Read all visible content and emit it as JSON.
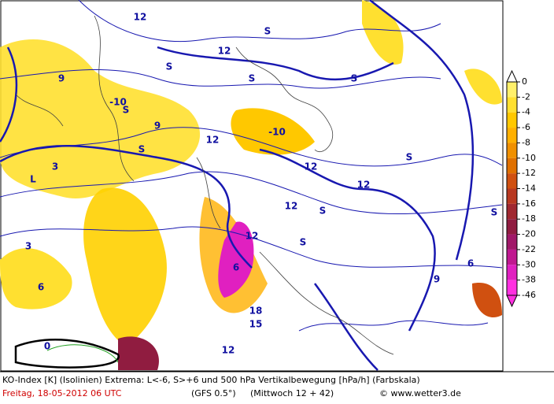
{
  "scale": {
    "ticks": [
      0,
      -2,
      -4,
      -6,
      -8,
      -10,
      -12,
      -14,
      -16,
      -18,
      -20,
      -22,
      -30,
      -38,
      -46
    ],
    "colors": [
      "#fff06a",
      "#ffe030",
      "#ffc800",
      "#ffb000",
      "#f09000",
      "#e07000",
      "#d05010",
      "#b83820",
      "#a02830",
      "#901c40",
      "#a01868",
      "#c01890",
      "#e020c0",
      "#ff30e0"
    ]
  },
  "map_labels": [
    "12",
    "12",
    "12",
    "12",
    "12",
    "12",
    "12",
    "12",
    "9",
    "9",
    "9",
    "6",
    "6",
    "6",
    "S",
    "S",
    "S",
    "S",
    "S",
    "S",
    "S",
    "S",
    "S",
    "S",
    "L",
    "15",
    "18",
    "0",
    "-10",
    "-10",
    "3",
    "3"
  ],
  "footer": {
    "line1": "KO-Index [K] (Isolinien) Extrema: L<-6, S>+6 und 500 hPa Vertikalbewegung [hPa/h] (Farbskala)",
    "date": "Freitag, 18-05-2012  06 UTC",
    "model": "(GFS 0.5°)",
    "run": "(Mittwoch 12 + 42)",
    "site": "© www.wetter3.de"
  }
}
